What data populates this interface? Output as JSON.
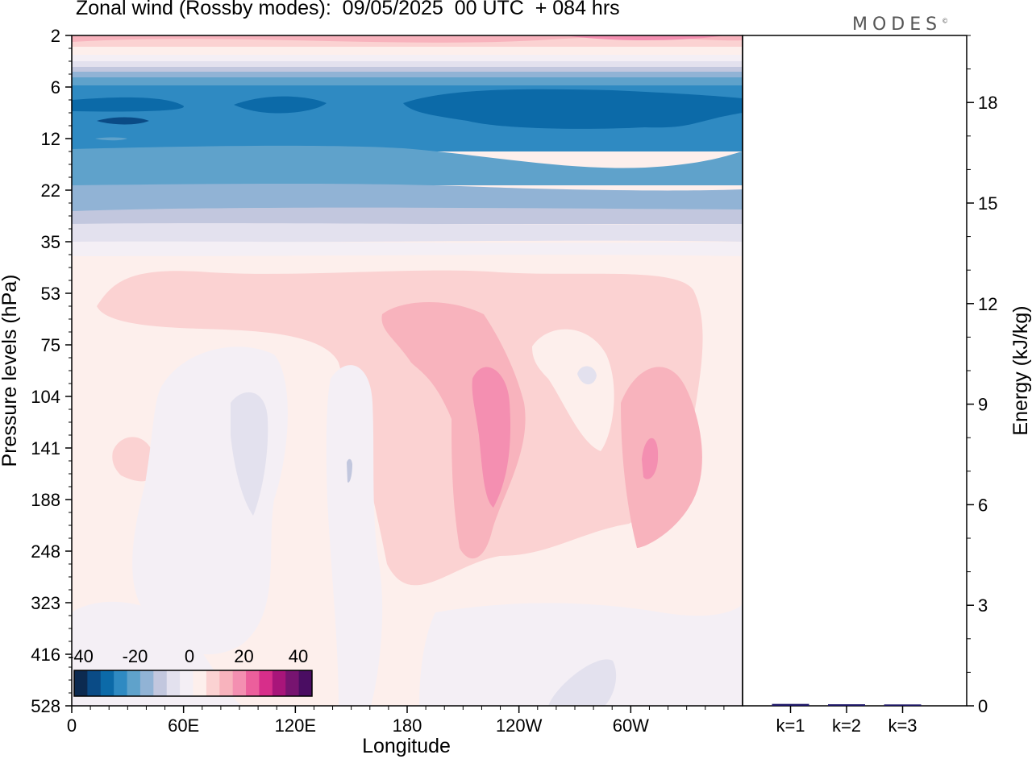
{
  "header": {
    "title": "Zonal wind (Rossby modes):  09/05/2025  00 UTC  + 084 hrs",
    "brand": "MODES",
    "brand_mark": "©"
  },
  "chart_data": [
    {
      "type": "heatmap",
      "title": "Zonal wind (Rossby modes):  09/05/2025  00 UTC  + 084 hrs",
      "xlabel": "Longitude",
      "ylabel": "Pressure levels (hPa)",
      "x_ticks": [
        "0",
        "60E",
        "120E",
        "180",
        "120W",
        "60W"
      ],
      "x_range": [
        0,
        360
      ],
      "y_ticks": [
        "2",
        "6",
        "12",
        "22",
        "35",
        "53",
        "75",
        "104",
        "141",
        "188",
        "248",
        "323",
        "416",
        "528"
      ],
      "colorbar": {
        "tick_labels": [
          "-40",
          "-20",
          "0",
          "20",
          "40"
        ],
        "range": [
          -40,
          40
        ],
        "colors": [
          "#0c2a50",
          "#0a4b86",
          "#0c6aa8",
          "#2f8ac2",
          "#5fa2cb",
          "#91b3d5",
          "#c2c7de",
          "#e3e1ee",
          "#f4eff5",
          "#fdefec",
          "#fbd2d2",
          "#f8b3bd",
          "#f48fb1",
          "#ec5f9c",
          "#d72e8a",
          "#a8157a",
          "#771470",
          "#4a0d62"
        ]
      },
      "grid": false
    },
    {
      "type": "bar",
      "categories": [
        "k=1",
        "k=2",
        "k=3"
      ],
      "values": [
        0.02,
        0.01,
        0.005
      ],
      "ylabel": "Energy (kJ/kg)",
      "y_ticks": [
        "0",
        "3",
        "6",
        "9",
        "12",
        "15",
        "18"
      ],
      "ylim": [
        0,
        20
      ]
    }
  ]
}
